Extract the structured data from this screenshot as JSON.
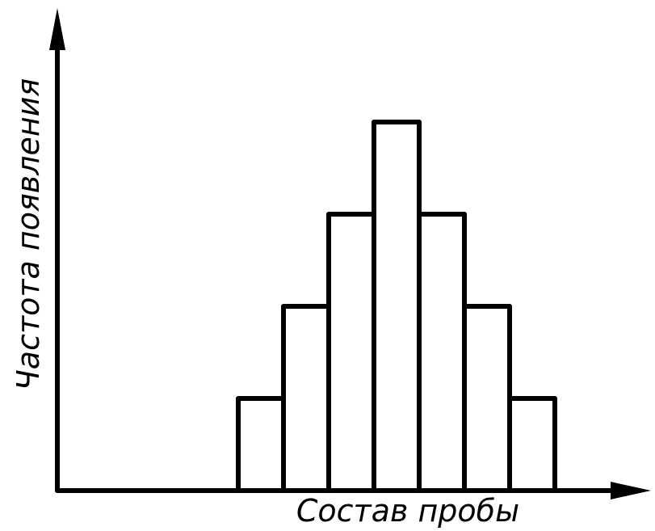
{
  "chart_data": {
    "type": "bar",
    "title": "",
    "xlabel": "Состав пробы",
    "ylabel": "Частота появления",
    "values": [
      1,
      2,
      3,
      4,
      3,
      2,
      1
    ],
    "ylim": [
      0,
      5
    ],
    "grid": false,
    "legend": "none",
    "tick_labels": false,
    "colors": {
      "stroke": "#000000",
      "fill": "#ffffff",
      "background": "#ffffff"
    }
  }
}
